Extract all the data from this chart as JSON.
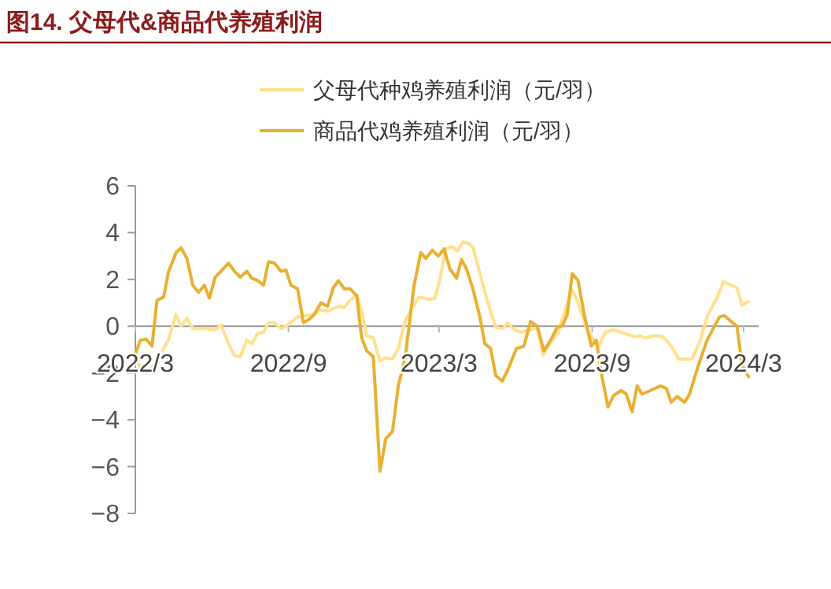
{
  "chart_data": {
    "type": "line",
    "title": "图14. 父母代&商品代养殖利润",
    "xlim": [
      "2022-03-01",
      "2024-03-19"
    ],
    "xticks": [
      {
        "value": "2022-03-01",
        "label": "2022/3"
      },
      {
        "value": "2022-09-01",
        "label": "2022/9"
      },
      {
        "value": "2023-03-01",
        "label": "2023/3"
      },
      {
        "value": "2023-09-01",
        "label": "2023/9"
      },
      {
        "value": "2024-03-01",
        "label": "2024/3"
      }
    ],
    "ylim": [
      -8,
      6
    ],
    "yticks": [
      -8,
      -6,
      -4,
      -2,
      0,
      2,
      4,
      6
    ],
    "legend": "top",
    "series": [
      {
        "name": "父母代种鸡养殖利润（元/羽）",
        "color": "#ffe08c",
        "x": [
          "2022-03-01",
          "2022-03-07",
          "2022-03-14",
          "2022-03-21",
          "2022-03-27",
          "2022-04-04",
          "2022-04-10",
          "2022-04-19",
          "2022-04-25",
          "2022-05-02",
          "2022-05-09",
          "2022-05-23",
          "2022-06-05",
          "2022-06-12",
          "2022-06-21",
          "2022-06-28",
          "2022-07-05",
          "2022-07-13",
          "2022-07-19",
          "2022-07-26",
          "2022-08-02",
          "2022-08-08",
          "2022-08-15",
          "2022-08-23",
          "2022-08-29",
          "2022-09-05",
          "2022-09-12",
          "2022-09-19",
          "2022-09-26",
          "2022-10-10",
          "2022-10-18",
          "2022-10-31",
          "2022-11-07",
          "2022-11-14",
          "2022-11-22",
          "2022-11-28",
          "2022-12-04",
          "2022-12-12",
          "2022-12-20",
          "2022-12-27",
          "2023-01-04",
          "2023-01-11",
          "2023-01-19",
          "2023-01-27",
          "2023-02-05",
          "2023-02-18",
          "2023-02-24",
          "2023-03-02",
          "2023-03-09",
          "2023-03-17",
          "2023-03-23",
          "2023-03-29",
          "2023-04-05",
          "2023-04-11",
          "2023-04-19",
          "2023-04-28",
          "2023-05-08",
          "2023-05-17",
          "2023-05-22",
          "2023-05-30",
          "2023-06-08",
          "2023-06-19",
          "2023-06-27",
          "2023-07-04",
          "2023-07-13",
          "2023-07-22",
          "2023-08-01",
          "2023-08-08",
          "2023-08-14",
          "2023-08-25",
          "2023-09-01",
          "2023-09-09",
          "2023-09-17",
          "2023-09-27",
          "2023-10-09",
          "2023-10-22",
          "2023-10-28",
          "2023-11-03",
          "2023-11-16",
          "2023-11-25",
          "2023-12-05",
          "2023-12-14",
          "2023-12-30",
          "2024-01-09",
          "2024-01-18",
          "2024-01-28",
          "2024-02-06",
          "2024-02-15",
          "2024-02-22",
          "2024-02-28",
          "2024-03-07"
        ],
        "values": [
          -1.4,
          -1.75,
          -2.0,
          -1.8,
          -1.4,
          -0.95,
          -0.55,
          0.5,
          0,
          0.35,
          -0.1,
          -0.1,
          -0.15,
          0.05,
          -0.75,
          -1.25,
          -1.3,
          -0.6,
          -0.75,
          -0.3,
          -0.25,
          0.15,
          0.15,
          -0.1,
          0,
          0.2,
          0.4,
          0.45,
          0.45,
          0.7,
          0.65,
          0.85,
          0.8,
          1.1,
          1.35,
          0.65,
          -0.4,
          -0.5,
          -1.5,
          -1.35,
          -1.4,
          -0.95,
          0.2,
          0.75,
          1.25,
          1.15,
          1.2,
          2.0,
          3.3,
          3.4,
          3.2,
          3.6,
          3.55,
          3.35,
          2.25,
          1.1,
          -0.05,
          -0.1,
          0.15,
          -0.15,
          -0.25,
          -0.15,
          -0.05,
          -1.25,
          -0.7,
          -0.25,
          0.85,
          1.55,
          1.1,
          -0.05,
          -0.5,
          -0.85,
          -0.25,
          -0.15,
          -0.3,
          -0.45,
          -0.4,
          -0.5,
          -0.4,
          -0.45,
          -0.85,
          -1.4,
          -1.4,
          -0.6,
          0.5,
          1.15,
          1.9,
          1.75,
          1.65,
          0.9,
          1.05
        ]
      },
      {
        "name": "商品代鸡养殖利润（元/羽）",
        "color": "#e8b030",
        "x": [
          "2022-03-01",
          "2022-03-07",
          "2022-03-14",
          "2022-03-21",
          "2022-03-27",
          "2022-04-04",
          "2022-04-10",
          "2022-04-19",
          "2022-04-25",
          "2022-05-02",
          "2022-05-09",
          "2022-05-16",
          "2022-05-23",
          "2022-05-29",
          "2022-06-05",
          "2022-06-12",
          "2022-06-21",
          "2022-06-28",
          "2022-07-05",
          "2022-07-13",
          "2022-07-19",
          "2022-07-26",
          "2022-08-02",
          "2022-08-08",
          "2022-08-15",
          "2022-08-23",
          "2022-08-29",
          "2022-09-04",
          "2022-09-12",
          "2022-09-19",
          "2022-09-26",
          "2022-10-02",
          "2022-10-10",
          "2022-10-18",
          "2022-10-25",
          "2022-10-31",
          "2022-11-07",
          "2022-11-14",
          "2022-11-22",
          "2022-11-28",
          "2022-12-04",
          "2022-12-12",
          "2022-12-20",
          "2022-12-27",
          "2023-01-04",
          "2023-01-11",
          "2023-01-19",
          "2023-01-30",
          "2023-02-07",
          "2023-02-13",
          "2023-02-21",
          "2023-02-28",
          "2023-03-07",
          "2023-03-14",
          "2023-03-22",
          "2023-03-28",
          "2023-04-03",
          "2023-04-11",
          "2023-04-19",
          "2023-04-25",
          "2023-05-02",
          "2023-05-08",
          "2023-05-16",
          "2023-05-24",
          "2023-06-02",
          "2023-06-11",
          "2023-06-19",
          "2023-06-27",
          "2023-07-05",
          "2023-07-13",
          "2023-07-21",
          "2023-07-27",
          "2023-08-02",
          "2023-08-08",
          "2023-08-15",
          "2023-08-23",
          "2023-08-31",
          "2023-09-06",
          "2023-09-13",
          "2023-09-20",
          "2023-09-27",
          "2023-10-06",
          "2023-10-12",
          "2023-10-19",
          "2023-10-25",
          "2023-10-31",
          "2023-11-10",
          "2023-11-22",
          "2023-11-29",
          "2023-12-05",
          "2023-12-12",
          "2023-12-21",
          "2023-12-27",
          "2024-01-05",
          "2024-01-17",
          "2024-01-26",
          "2024-02-01",
          "2024-02-07",
          "2024-02-15",
          "2024-02-22",
          "2024-02-28",
          "2024-03-07"
        ],
        "values": [
          -1.2,
          -0.6,
          -0.55,
          -0.85,
          1.1,
          1.25,
          2.35,
          3.15,
          3.35,
          2.9,
          1.75,
          1.45,
          1.75,
          1.2,
          2.1,
          2.35,
          2.7,
          2.35,
          2.1,
          2.35,
          2.05,
          1.95,
          1.75,
          2.75,
          2.7,
          2.35,
          2.4,
          1.75,
          1.6,
          0.15,
          0.3,
          0.5,
          1.0,
          0.85,
          1.65,
          1.95,
          1.6,
          1.6,
          1.3,
          -0.5,
          -1.05,
          -1.3,
          -6.2,
          -4.8,
          -4.5,
          -2.55,
          -1.4,
          1.75,
          3.15,
          2.9,
          3.25,
          3.0,
          3.3,
          2.45,
          2.05,
          2.85,
          2.45,
          1.55,
          0.4,
          -0.75,
          -0.95,
          -2.1,
          -2.35,
          -1.75,
          -0.95,
          -0.85,
          0.2,
          0,
          -1.05,
          -0.6,
          -0.05,
          0,
          0.5,
          2.25,
          1.95,
          0.4,
          -0.85,
          -0.6,
          -2.2,
          -3.45,
          -2.95,
          -2.75,
          -2.9,
          -3.65,
          -2.55,
          -2.9,
          -2.75,
          -2.55,
          -2.65,
          -3.25,
          -3.0,
          -3.25,
          -2.9,
          -1.85,
          -0.6,
          0,
          0.4,
          0.45,
          0.2,
          0,
          -1.65,
          -2.15
        ]
      }
    ]
  }
}
